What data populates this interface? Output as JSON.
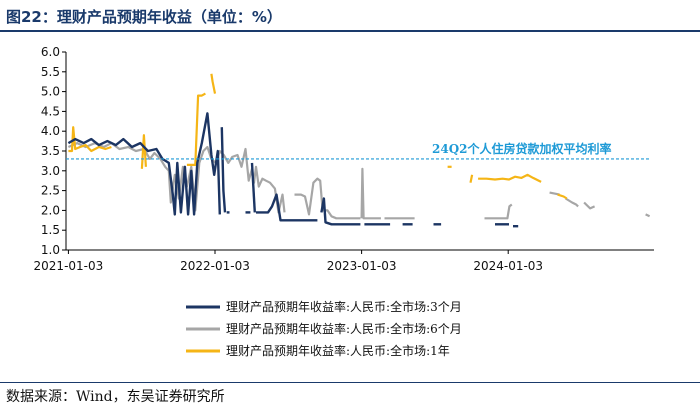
{
  "title": "图22：理财产品预期年收益（单位：%）",
  "source": "数据来源：Wind，东吴证券研究所",
  "chart_data": {
    "type": "line",
    "title": "图22：理财产品预期年收益（单位：%）",
    "ylim": [
      1.0,
      6.0
    ],
    "yticks": [
      "6.0",
      "5.5",
      "5.0",
      "4.5",
      "4.0",
      "3.5",
      "3.0",
      "2.5",
      "2.0",
      "1.5",
      "1.0"
    ],
    "xticks": [
      "2021-01-03",
      "2022-01-03",
      "2023-01-03",
      "2024-01-03"
    ],
    "reference_line": {
      "label": "24Q2个人住房贷款加权平均利率",
      "value": 3.3,
      "color": "#1e9ad6"
    },
    "series": [
      {
        "name": "理财产品预期年收益率:人民币:全市场:3个月",
        "color": "#1c3563",
        "segments": [
          [
            [
              "2021-01-03",
              3.7
            ],
            [
              "2021-01-20",
              3.8
            ],
            [
              "2021-02-10",
              3.7
            ],
            [
              "2021-03-01",
              3.8
            ],
            [
              "2021-03-20",
              3.65
            ],
            [
              "2021-04-10",
              3.75
            ],
            [
              "2021-05-01",
              3.65
            ],
            [
              "2021-05-20",
              3.8
            ],
            [
              "2021-06-10",
              3.6
            ],
            [
              "2021-07-01",
              3.7
            ],
            [
              "2021-07-20",
              3.5
            ],
            [
              "2021-08-10",
              3.55
            ],
            [
              "2021-08-25",
              3.3
            ],
            [
              "2021-09-10",
              3.2
            ],
            [
              "2021-09-20",
              2.4
            ],
            [
              "2021-09-25",
              1.9
            ],
            [
              "2021-10-01",
              3.2
            ],
            [
              "2021-10-10",
              1.95
            ],
            [
              "2021-10-20",
              3.1
            ],
            [
              "2021-10-28",
              1.9
            ],
            [
              "2021-11-05",
              3.0
            ],
            [
              "2021-11-12",
              1.9
            ],
            [
              "2021-11-20",
              3.2
            ],
            [
              "2021-12-01",
              3.7
            ],
            [
              "2021-12-15",
              4.45
            ],
            [
              "2021-12-25",
              3.4
            ],
            [
              "2022-01-01",
              2.9
            ],
            [
              "2022-01-10",
              3.5
            ],
            [
              "2022-01-15",
              1.9
            ]
          ],
          [
            [
              "2022-01-20",
              4.1
            ],
            [
              "2022-01-24",
              2.5
            ],
            [
              "2022-01-28",
              1.95
            ]
          ],
          [
            [
              "2022-02-01",
              1.95
            ],
            [
              "2022-02-08",
              1.95
            ]
          ],
          [
            [
              "2022-03-20",
              1.95
            ],
            [
              "2022-04-01",
              1.95
            ]
          ],
          [
            [
              "2022-04-05",
              3.2
            ],
            [
              "2022-04-12",
              1.95
            ]
          ],
          [
            [
              "2022-04-15",
              1.95
            ],
            [
              "2022-05-15",
              1.95
            ],
            [
              "2022-05-25",
              2.1
            ],
            [
              "2022-06-05",
              2.4
            ],
            [
              "2022-06-15",
              1.75
            ],
            [
              "2022-09-15",
              1.75
            ]
          ],
          [
            [
              "2022-09-25",
              1.95
            ],
            [
              "2022-10-01",
              2.3
            ],
            [
              "2022-10-05",
              1.7
            ],
            [
              "2022-10-20",
              1.65
            ],
            [
              "2022-12-31",
              1.65
            ]
          ],
          [
            [
              "2023-01-10",
              1.65
            ],
            [
              "2023-03-15",
              1.65
            ]
          ],
          [
            [
              "2023-04-15",
              1.65
            ],
            [
              "2023-05-10",
              1.65
            ]
          ],
          [
            [
              "2023-07-01",
              1.65
            ],
            [
              "2023-07-20",
              1.65
            ]
          ],
          [
            [
              "2023-12-01",
              1.65
            ],
            [
              "2024-01-05",
              1.65
            ]
          ],
          [
            [
              "2024-01-15",
              1.6
            ],
            [
              "2024-01-28",
              1.6
            ]
          ]
        ]
      },
      {
        "name": "理财产品预期年收益率:人民币:全市场:6个月",
        "color": "#a6a6a6",
        "segments": [
          [
            [
              "2021-01-03",
              3.6
            ],
            [
              "2021-01-25",
              3.7
            ],
            [
              "2021-02-15",
              3.6
            ],
            [
              "2021-03-10",
              3.7
            ],
            [
              "2021-04-01",
              3.6
            ],
            [
              "2021-04-20",
              3.7
            ],
            [
              "2021-05-10",
              3.55
            ],
            [
              "2021-06-01",
              3.6
            ],
            [
              "2021-06-20",
              3.5
            ],
            [
              "2021-07-10",
              3.55
            ],
            [
              "2021-07-25",
              3.3
            ],
            [
              "2021-08-05",
              3.45
            ],
            [
              "2021-08-20",
              3.3
            ],
            [
              "2021-09-01",
              3.1
            ],
            [
              "2021-09-10",
              3.0
            ],
            [
              "2021-09-15",
              2.2
            ],
            [
              "2021-09-25",
              2.9
            ],
            [
              "2021-10-05",
              2.3
            ],
            [
              "2021-10-15",
              3.1
            ],
            [
              "2021-10-25",
              2.6
            ],
            [
              "2021-11-05",
              3.1
            ],
            [
              "2021-11-15",
              2.0
            ],
            [
              "2021-11-25",
              3.2
            ],
            [
              "2021-12-05",
              3.5
            ],
            [
              "2021-12-15",
              3.6
            ],
            [
              "2021-12-25",
              3.3
            ],
            [
              "2022-01-05",
              3.2
            ],
            [
              "2022-01-15",
              3.5
            ],
            [
              "2022-01-25",
              3.4
            ],
            [
              "2022-02-05",
              3.2
            ],
            [
              "2022-02-15",
              3.35
            ],
            [
              "2022-02-28",
              3.4
            ],
            [
              "2022-03-10",
              3.1
            ],
            [
              "2022-03-20",
              3.55
            ],
            [
              "2022-03-28",
              2.75
            ],
            [
              "2022-04-05",
              3.05
            ],
            [
              "2022-04-10",
              2.7
            ],
            [
              "2022-04-15",
              3.1
            ],
            [
              "2022-04-22",
              2.6
            ],
            [
              "2022-05-01",
              2.8
            ],
            [
              "2022-05-10",
              2.75
            ],
            [
              "2022-05-20",
              2.7
            ],
            [
              "2022-06-01",
              2.55
            ],
            [
              "2022-06-10",
              1.95
            ],
            [
              "2022-06-20",
              2.4
            ],
            [
              "2022-06-25",
              1.95
            ]
          ],
          [
            [
              "2022-07-20",
              2.4
            ],
            [
              "2022-08-05",
              2.4
            ],
            [
              "2022-08-15",
              2.35
            ],
            [
              "2022-08-25",
              1.9
            ],
            [
              "2022-09-05",
              2.7
            ],
            [
              "2022-09-15",
              2.8
            ],
            [
              "2022-09-22",
              2.75
            ],
            [
              "2022-09-28",
              2.0
            ],
            [
              "2022-10-10",
              2.0
            ],
            [
              "2022-10-20",
              1.85
            ],
            [
              "2022-11-01",
              1.8
            ],
            [
              "2022-12-31",
              1.8
            ]
          ],
          [
            [
              "2023-01-03",
              1.8
            ],
            [
              "2023-01-05",
              3.05
            ],
            [
              "2023-01-08",
              1.8
            ],
            [
              "2023-02-20",
              1.8
            ]
          ],
          [
            [
              "2023-03-01",
              1.8
            ],
            [
              "2023-05-15",
              1.8
            ]
          ],
          [
            [
              "2023-11-05",
              1.8
            ],
            [
              "2023-12-25",
              1.8
            ],
            [
              "2024-01-01",
              1.8
            ],
            [
              "2024-01-06",
              2.1
            ],
            [
              "2024-01-12",
              2.15
            ]
          ],
          [
            [
              "2024-04-15",
              2.45
            ],
            [
              "2024-05-10",
              2.4
            ]
          ],
          [
            [
              "2024-05-25",
              2.3
            ],
            [
              "2024-06-10",
              2.2
            ],
            [
              "2024-06-20",
              2.15
            ],
            [
              "2024-06-25",
              2.1
            ]
          ],
          [
            [
              "2024-07-10",
              2.2
            ],
            [
              "2024-07-25",
              2.05
            ],
            [
              "2024-08-05",
              2.1
            ]
          ],
          [
            [
              "2024-12-10",
              1.9
            ],
            [
              "2024-12-20",
              1.85
            ]
          ]
        ]
      },
      {
        "name": "理财产品预期年收益率:人民币:全市场:1年",
        "color": "#f5b516",
        "segments": [
          [
            [
              "2021-01-03",
              3.5
            ],
            [
              "2021-01-12",
              3.5
            ],
            [
              "2021-01-15",
              4.1
            ],
            [
              "2021-01-20",
              3.55
            ],
            [
              "2021-02-01",
              3.6
            ],
            [
              "2021-02-15",
              3.65
            ],
            [
              "2021-03-01",
              3.5
            ],
            [
              "2021-03-20",
              3.6
            ],
            [
              "2021-04-05",
              3.55
            ],
            [
              "2021-04-20",
              3.6
            ]
          ],
          [
            [
              "2021-07-05",
              3.05
            ],
            [
              "2021-07-10",
              3.9
            ],
            [
              "2021-07-15",
              3.1
            ]
          ],
          [
            [
              "2021-10-25",
              3.15
            ],
            [
              "2021-11-15",
              3.15
            ],
            [
              "2021-11-22",
              4.9
            ],
            [
              "2021-12-01",
              4.9
            ],
            [
              "2021-12-10",
              4.95
            ]
          ],
          [
            [
              "2021-12-25",
              5.45
            ],
            [
              "2021-12-28",
              5.25
            ],
            [
              "2022-01-03",
              4.95
            ]
          ],
          [
            [
              "2023-08-05",
              3.1
            ],
            [
              "2023-08-15",
              3.1
            ]
          ],
          [
            [
              "2023-10-01",
              2.7
            ],
            [
              "2023-10-05",
              2.9
            ]
          ],
          [
            [
              "2023-10-20",
              2.8
            ],
            [
              "2023-11-10",
              2.8
            ],
            [
              "2023-12-01",
              2.78
            ],
            [
              "2023-12-20",
              2.8
            ],
            [
              "2024-01-05",
              2.78
            ],
            [
              "2024-01-20",
              2.85
            ],
            [
              "2024-02-05",
              2.82
            ],
            [
              "2024-02-20",
              2.9
            ],
            [
              "2024-03-05",
              2.82
            ],
            [
              "2024-03-25",
              2.72
            ]
          ],
          [
            [
              "2024-05-05",
              2.4
            ],
            [
              "2024-05-20",
              2.35
            ],
            [
              "2024-05-28",
              2.3
            ]
          ]
        ]
      }
    ]
  }
}
